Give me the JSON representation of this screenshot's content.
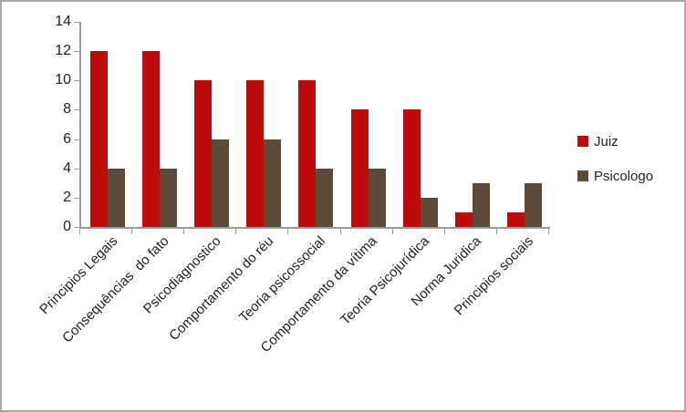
{
  "window": {
    "background": "#FFFFFF",
    "border_color": "#A7A7A7"
  },
  "chart_data": {
    "type": "bar",
    "title": "",
    "xlabel": "",
    "ylabel": "",
    "categories": [
      "Principios Legais",
      "Consequências  do fato",
      "Psicodiagnostico",
      "Comportamento do réu",
      "Teoria psicossocial",
      "Comportamento da vítima",
      "Teoria Psicojurídica",
      "Norma Juridica",
      "Principios sociais"
    ],
    "series": [
      {
        "name": "Juiz",
        "color": "#BE0B0B",
        "values": [
          12,
          12,
          10,
          10,
          10,
          8,
          8,
          1,
          1
        ]
      },
      {
        "name": "Psicologo",
        "color": "#5B4B38",
        "values": [
          4,
          4,
          6,
          6,
          4,
          4,
          2,
          3,
          3
        ]
      }
    ],
    "ylim": [
      0,
      14
    ],
    "yticks": [
      0,
      2,
      4,
      6,
      8,
      10,
      12,
      14
    ],
    "grid": false,
    "legend_position": "right",
    "axis_color": "#9B9B9B",
    "text_color": "#1F1F1F"
  }
}
